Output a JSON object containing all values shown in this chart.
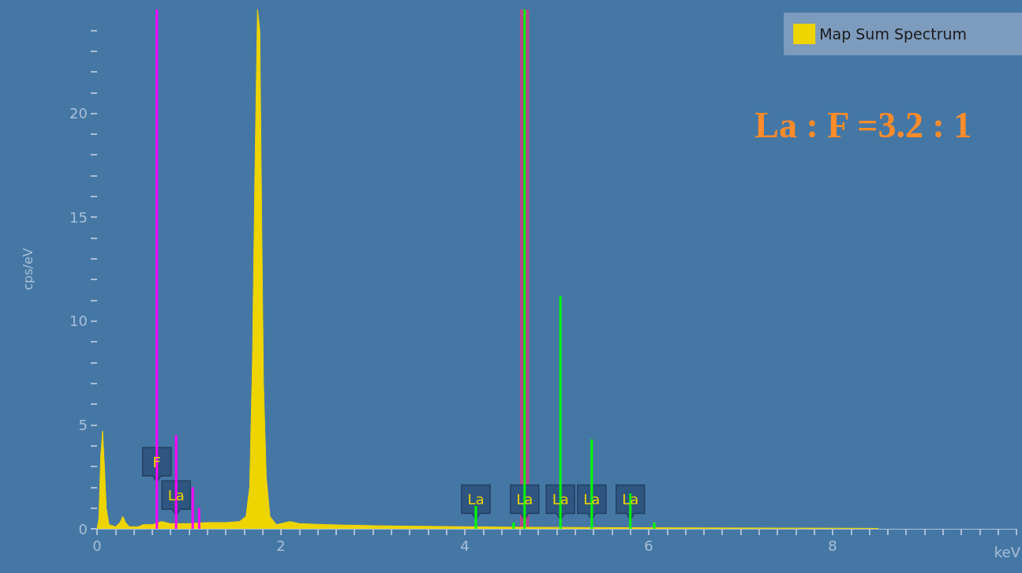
{
  "chart_data": {
    "type": "area",
    "ylabel": "cps/eV",
    "xlabel": "keV",
    "xlim": [
      0,
      10
    ],
    "ylim": [
      0,
      25
    ],
    "xticks": [
      0,
      {
        "value": 0.2,
        "label": null
      },
      {
        "value": 0.4,
        "label": null
      },
      {
        "value": 0.6,
        "label": null
      },
      {
        "value": 0.8,
        "label": null
      },
      {
        "value": 1,
        "label": null
      },
      {
        "value": 1.2,
        "label": null
      },
      {
        "value": 1.4,
        "label": null
      },
      {
        "value": 1.6,
        "label": null
      },
      {
        "value": 1.8,
        "label": null
      },
      2,
      {
        "value": 2.2,
        "label": null
      },
      {
        "value": 2.4,
        "label": null
      },
      {
        "value": 2.6,
        "label": null
      },
      {
        "value": 2.8,
        "label": null
      },
      {
        "value": 3,
        "label": null
      },
      {
        "value": 3.2,
        "label": null
      },
      {
        "value": 3.4,
        "label": null
      },
      {
        "value": 3.6,
        "label": null
      },
      {
        "value": 3.8,
        "label": null
      },
      4,
      {
        "value": 4.2,
        "label": null
      },
      {
        "value": 4.4,
        "label": null
      },
      {
        "value": 4.6,
        "label": null
      },
      {
        "value": 4.8,
        "label": null
      },
      {
        "value": 5,
        "label": null
      },
      {
        "value": 5.2,
        "label": null
      },
      {
        "value": 5.4,
        "label": null
      },
      {
        "value": 5.6,
        "label": null
      },
      {
        "value": 5.8,
        "label": null
      },
      6,
      {
        "value": 6.2,
        "label": null
      },
      {
        "value": 6.4,
        "label": null
      },
      {
        "value": 6.6,
        "label": null
      },
      {
        "value": 6.8,
        "label": null
      },
      {
        "value": 7,
        "label": null
      },
      {
        "value": 7.2,
        "label": null
      },
      {
        "value": 7.4,
        "label": null
      },
      {
        "value": 7.6,
        "label": null
      },
      {
        "value": 7.8,
        "label": null
      },
      8,
      {
        "value": 8.2,
        "label": null
      },
      {
        "value": 8.4,
        "label": null
      },
      {
        "value": 8.6,
        "label": null
      },
      {
        "value": 8.8,
        "label": null
      },
      {
        "value": 9,
        "label": null
      },
      {
        "value": 9.2,
        "label": null
      },
      {
        "value": 9.4,
        "label": null
      },
      {
        "value": 9.6,
        "label": null
      },
      {
        "value": 9.8,
        "label": null
      },
      {
        "value": 10,
        "label": null
      }
    ],
    "yticks": [
      0,
      {
        "value": 1,
        "label": null
      },
      {
        "value": 2,
        "label": null
      },
      {
        "value": 3,
        "label": null
      },
      {
        "value": 4,
        "label": null
      },
      5,
      {
        "value": 6,
        "label": null
      },
      {
        "value": 7,
        "label": null
      },
      {
        "value": 8,
        "label": null
      },
      {
        "value": 9,
        "label": null
      },
      10,
      {
        "value": 11,
        "label": null
      },
      {
        "value": 12,
        "label": null
      },
      {
        "value": 13,
        "label": null
      },
      {
        "value": 14,
        "label": null
      },
      15,
      {
        "value": 16,
        "label": null
      },
      {
        "value": 17,
        "label": null
      },
      {
        "value": 18,
        "label": null
      },
      {
        "value": 19,
        "label": null
      },
      20,
      {
        "value": 21,
        "label": null
      },
      {
        "value": 22,
        "label": null
      },
      {
        "value": 23,
        "label": null
      },
      {
        "value": 24,
        "label": null
      }
    ],
    "grid": false,
    "legend": "top right",
    "bands": [
      {
        "axis": "x",
        "from": 4.6,
        "to": 4.7,
        "color": "#b04a8c"
      }
    ],
    "series": [
      {
        "name": "Map Sum Spectrum",
        "color": "#eed400",
        "x": [
          0,
          0.02,
          0.04,
          0.06,
          0.08,
          0.1,
          0.13,
          0.2,
          0.25,
          0.28,
          0.31,
          0.35,
          0.45,
          0.5,
          0.6,
          0.7,
          0.8,
          0.9,
          1.0,
          1.2,
          1.4,
          1.55,
          1.62,
          1.66,
          1.69,
          1.72,
          1.745,
          1.77,
          1.79,
          1.81,
          1.84,
          1.88,
          1.95,
          2.05,
          2.1,
          2.2,
          2.5,
          3,
          3.5,
          4,
          4.5,
          5,
          5.5,
          6,
          7,
          8,
          8.5
        ],
        "values": [
          0,
          0.5,
          3.5,
          4.7,
          3.0,
          1.0,
          0.2,
          0.1,
          0.3,
          0.6,
          0.3,
          0.1,
          0.1,
          0.2,
          0.2,
          0.35,
          0.25,
          0.25,
          0.25,
          0.3,
          0.3,
          0.35,
          0.6,
          2,
          8,
          18,
          25,
          24,
          15,
          7,
          2.5,
          0.6,
          0.2,
          0.3,
          0.35,
          0.25,
          0.2,
          0.15,
          0.12,
          0.1,
          0.08,
          0.07,
          0.06,
          0.05,
          0.04,
          0.03,
          0.02
        ]
      },
      {
        "type": "bar",
        "color": "#ff00ff",
        "x": [
          0.65,
          0.86,
          1.04,
          1.11
        ],
        "values": [
          25,
          4.5,
          2.0,
          1.0
        ]
      },
      {
        "type": "bar",
        "color": "#00ff00",
        "x": [
          4.12,
          4.53,
          4.65,
          5.04,
          5.38,
          5.8,
          6.06
        ],
        "values": [
          1.1,
          0.3,
          25,
          11.2,
          4.3,
          1.7,
          0.3
        ]
      }
    ],
    "annotations": [
      {
        "text": "F",
        "x": 0.65,
        "y": 3
      },
      {
        "text": "La",
        "x": 0.86,
        "y": 1.4
      },
      {
        "text": "La",
        "x": 4.12,
        "y": 1.2
      },
      {
        "text": "La",
        "x": 4.65,
        "y": 1.2
      },
      {
        "text": "La",
        "x": 5.04,
        "y": 1.2
      },
      {
        "text": "La",
        "x": 5.38,
        "y": 1.2
      },
      {
        "text": "La",
        "x": 5.8,
        "y": 1.2
      },
      "La : F =3.2 : 1"
    ]
  }
}
